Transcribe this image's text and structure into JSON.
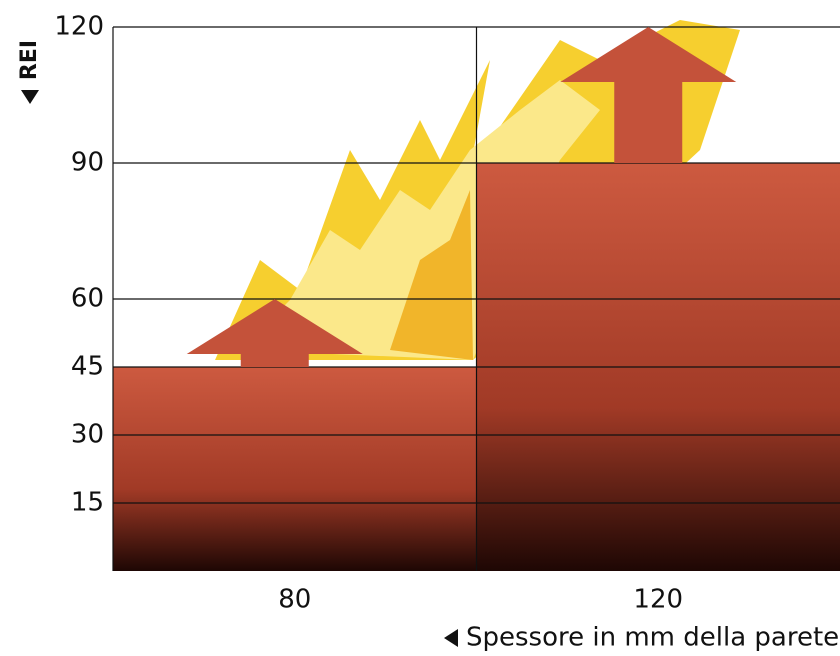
{
  "chart_data": {
    "type": "bar",
    "categories": [
      "80",
      "120"
    ],
    "values": [
      45,
      90
    ],
    "arrows": [
      60,
      120
    ],
    "y_label": "REI",
    "x_label": "Spessore in mm della parete",
    "ylim": [
      0,
      120
    ],
    "yticks": [
      15,
      30,
      45,
      60,
      90,
      120
    ],
    "grid": true,
    "color": "#c4523a"
  }
}
